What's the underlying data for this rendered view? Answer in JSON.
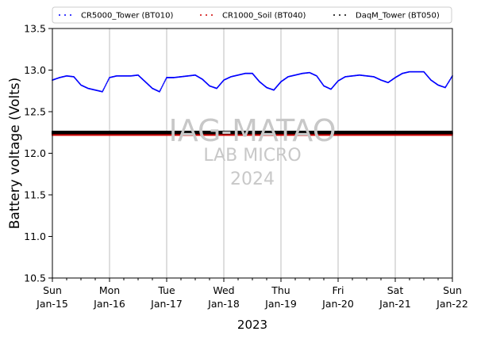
{
  "chart_data": {
    "type": "scatter",
    "ylabel": "Battery voltage (Volts)",
    "xlabel": "2023",
    "ylim": [
      10.5,
      13.5
    ],
    "yticks": [
      "10.5",
      "11.0",
      "11.5",
      "12.0",
      "12.5",
      "13.0",
      "13.5"
    ],
    "xlim": [
      "2023-01-15",
      "2023-01-22"
    ],
    "xticks": [
      {
        "date": "2023-01-15",
        "day": "Sun",
        "label": "Jan-15"
      },
      {
        "date": "2023-01-16",
        "day": "Mon",
        "label": "Jan-16"
      },
      {
        "date": "2023-01-17",
        "day": "Tue",
        "label": "Jan-17"
      },
      {
        "date": "2023-01-18",
        "day": "Wed",
        "label": "Jan-18"
      },
      {
        "date": "2023-01-19",
        "day": "Thu",
        "label": "Jan-19"
      },
      {
        "date": "2023-01-20",
        "day": "Fri",
        "label": "Jan-20"
      },
      {
        "date": "2023-01-21",
        "day": "Sat",
        "label": "Jan-21"
      },
      {
        "date": "2023-01-22",
        "day": "Sun",
        "label": "Jan-22"
      }
    ],
    "grid": "vertical lines at day ticks",
    "legend_position": "top",
    "watermark": {
      "line1": "IAG-MATAO",
      "line2": "LAB MICRO",
      "line3": "2024"
    },
    "series": [
      {
        "name": "CR5000_Tower (BT010)",
        "color": "#0000ff",
        "x": [
          "2023-01-15 00:00",
          "2023-01-15 03:00",
          "2023-01-15 06:00",
          "2023-01-15 09:00",
          "2023-01-15 12:00",
          "2023-01-15 15:00",
          "2023-01-15 18:00",
          "2023-01-15 21:00",
          "2023-01-16 00:00",
          "2023-01-16 03:00",
          "2023-01-16 06:00",
          "2023-01-16 09:00",
          "2023-01-16 12:00",
          "2023-01-16 15:00",
          "2023-01-16 18:00",
          "2023-01-16 21:00",
          "2023-01-17 00:00",
          "2023-01-17 03:00",
          "2023-01-17 06:00",
          "2023-01-17 09:00",
          "2023-01-17 12:00",
          "2023-01-17 15:00",
          "2023-01-17 18:00",
          "2023-01-17 21:00",
          "2023-01-18 00:00",
          "2023-01-18 03:00",
          "2023-01-18 06:00",
          "2023-01-18 09:00",
          "2023-01-18 12:00",
          "2023-01-18 15:00",
          "2023-01-18 18:00",
          "2023-01-18 21:00",
          "2023-01-19 00:00",
          "2023-01-19 03:00",
          "2023-01-19 06:00",
          "2023-01-19 09:00",
          "2023-01-19 12:00",
          "2023-01-19 15:00",
          "2023-01-19 18:00",
          "2023-01-19 21:00",
          "2023-01-20 00:00",
          "2023-01-20 03:00",
          "2023-01-20 06:00",
          "2023-01-20 09:00",
          "2023-01-20 12:00",
          "2023-01-20 15:00",
          "2023-01-20 18:00",
          "2023-01-20 21:00",
          "2023-01-21 00:00",
          "2023-01-21 03:00",
          "2023-01-21 06:00",
          "2023-01-21 09:00",
          "2023-01-21 12:00",
          "2023-01-21 15:00",
          "2023-01-21 18:00",
          "2023-01-21 21:00",
          "2023-01-22 00:00"
        ],
        "y": [
          12.88,
          12.91,
          12.93,
          12.92,
          12.82,
          12.78,
          12.76,
          12.74,
          12.91,
          12.93,
          12.93,
          12.93,
          12.94,
          12.86,
          12.78,
          12.74,
          12.91,
          12.91,
          12.92,
          12.93,
          12.94,
          12.89,
          12.81,
          12.78,
          12.88,
          12.92,
          12.94,
          12.96,
          12.96,
          12.86,
          12.79,
          12.76,
          12.86,
          12.92,
          12.94,
          12.96,
          12.97,
          12.93,
          12.81,
          12.77,
          12.87,
          12.92,
          12.93,
          12.94,
          12.93,
          12.92,
          12.88,
          12.85,
          12.91,
          12.96,
          12.98,
          12.98,
          12.98,
          12.88,
          12.82,
          12.79,
          12.93
        ]
      },
      {
        "name": "CR1000_Soil (BT040)",
        "color": "#d00000",
        "x": [
          "2023-01-15 00:00",
          "2023-01-15 12:00",
          "2023-01-16 00:00",
          "2023-01-16 12:00",
          "2023-01-17 00:00",
          "2023-01-17 12:00",
          "2023-01-18 00:00",
          "2023-01-18 12:00",
          "2023-01-19 00:00",
          "2023-01-19 12:00",
          "2023-01-20 00:00",
          "2023-01-20 12:00",
          "2023-01-21 00:00",
          "2023-01-21 12:00",
          "2023-01-22 00:00"
        ],
        "y": [
          12.23,
          12.23,
          12.23,
          12.23,
          12.23,
          12.23,
          12.23,
          12.23,
          12.23,
          12.23,
          12.23,
          12.23,
          12.23,
          12.23,
          12.23
        ]
      },
      {
        "name": "DaqM_Tower (BT050)",
        "color": "#000000",
        "x": [
          "2023-01-15 00:00",
          "2023-01-15 12:00",
          "2023-01-16 00:00",
          "2023-01-16 12:00",
          "2023-01-17 00:00",
          "2023-01-17 12:00",
          "2023-01-18 00:00",
          "2023-01-18 12:00",
          "2023-01-19 00:00",
          "2023-01-19 12:00",
          "2023-01-20 00:00",
          "2023-01-20 12:00",
          "2023-01-21 00:00",
          "2023-01-21 12:00",
          "2023-01-22 00:00"
        ],
        "y": [
          12.25,
          12.25,
          12.25,
          12.25,
          12.25,
          12.25,
          12.25,
          12.25,
          12.25,
          12.25,
          12.25,
          12.25,
          12.25,
          12.25,
          12.25
        ]
      }
    ]
  }
}
